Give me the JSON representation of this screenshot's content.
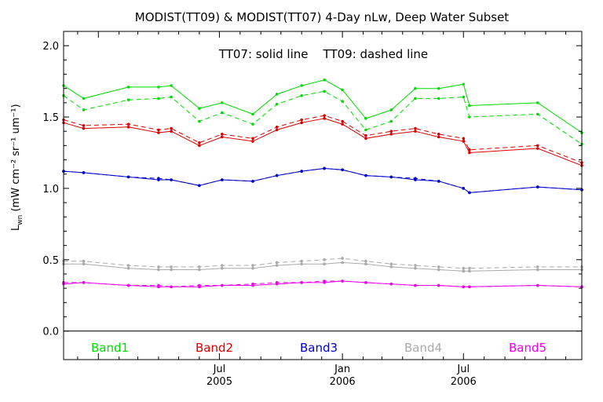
{
  "chart_data": {
    "type": "line",
    "title": "MODIST(TT09) & MODIST(TT07) 4-Day nLw, Deep Water Subset",
    "annotation": "TT07: solid line    TT09: dashed line",
    "ylabel_main": "L",
    "ylabel_sub": "wn",
    "ylabel_units": "(mW cm⁻² sr⁻¹ um⁻¹)",
    "ylim": [
      -0.2,
      2.1
    ],
    "yticks": [
      "0.0",
      "0.5",
      "1.0",
      "1.5",
      "2.0"
    ],
    "xlim": [
      "2004-11-10",
      "2006-12-25"
    ],
    "x_tick_labels": [
      {
        "date": "2005-07-01",
        "month": "Jul",
        "year": "2005"
      },
      {
        "date": "2006-01-01",
        "month": "Jan",
        "year": "2006"
      },
      {
        "date": "2006-07-01",
        "month": "Jul",
        "year": "2006"
      }
    ],
    "grid": false,
    "x": [
      "2004-11-10",
      "2004-12-10",
      "2005-02-15",
      "2005-04-01",
      "2005-04-20",
      "2005-06-01",
      "2005-07-05",
      "2005-08-20",
      "2005-09-25",
      "2005-11-01",
      "2005-12-05",
      "2006-01-01",
      "2006-02-05",
      "2006-03-15",
      "2006-04-20",
      "2006-05-25",
      "2006-07-01",
      "2006-07-10",
      "2006-10-20",
      "2006-12-25"
    ],
    "series": [
      {
        "name": "Band1",
        "color": "#00dd00",
        "solid": [
          1.72,
          1.63,
          1.71,
          1.71,
          1.72,
          1.56,
          1.6,
          1.52,
          1.66,
          1.72,
          1.76,
          1.69,
          1.49,
          1.55,
          1.7,
          1.7,
          1.73,
          1.58,
          1.6,
          1.39
        ],
        "dashed": [
          1.65,
          1.55,
          1.62,
          1.63,
          1.64,
          1.47,
          1.53,
          1.45,
          1.59,
          1.65,
          1.68,
          1.61,
          1.41,
          1.47,
          1.63,
          1.63,
          1.64,
          1.5,
          1.52,
          1.31
        ]
      },
      {
        "name": "Band2",
        "color": "#dd0000",
        "solid": [
          1.46,
          1.42,
          1.43,
          1.39,
          1.4,
          1.3,
          1.36,
          1.33,
          1.41,
          1.46,
          1.49,
          1.45,
          1.35,
          1.38,
          1.4,
          1.36,
          1.33,
          1.25,
          1.28,
          1.16
        ],
        "dashed": [
          1.48,
          1.44,
          1.45,
          1.41,
          1.42,
          1.32,
          1.38,
          1.35,
          1.43,
          1.48,
          1.51,
          1.47,
          1.37,
          1.4,
          1.42,
          1.38,
          1.35,
          1.27,
          1.3,
          1.18
        ]
      },
      {
        "name": "Band3",
        "color": "#0000cc",
        "solid": [
          1.12,
          1.11,
          1.08,
          1.06,
          1.06,
          1.02,
          1.06,
          1.05,
          1.09,
          1.12,
          1.14,
          1.13,
          1.09,
          1.08,
          1.06,
          1.05,
          1.0,
          0.97,
          1.01,
          0.99
        ],
        "dashed": [
          1.12,
          1.11,
          1.08,
          1.07,
          1.06,
          1.02,
          1.06,
          1.05,
          1.09,
          1.12,
          1.14,
          1.13,
          1.09,
          1.08,
          1.07,
          1.05,
          1.0,
          0.97,
          1.01,
          0.99
        ]
      },
      {
        "name": "Band4",
        "color": "#aaaaaa",
        "solid": [
          0.47,
          0.47,
          0.44,
          0.43,
          0.43,
          0.43,
          0.44,
          0.44,
          0.46,
          0.47,
          0.47,
          0.48,
          0.47,
          0.45,
          0.44,
          0.43,
          0.42,
          0.42,
          0.43,
          0.43
        ],
        "dashed": [
          0.49,
          0.49,
          0.46,
          0.45,
          0.45,
          0.45,
          0.46,
          0.46,
          0.48,
          0.49,
          0.5,
          0.51,
          0.49,
          0.47,
          0.46,
          0.45,
          0.44,
          0.44,
          0.45,
          0.45
        ]
      },
      {
        "name": "Band5",
        "color": "#ee00ee",
        "solid": [
          0.33,
          0.34,
          0.32,
          0.31,
          0.31,
          0.31,
          0.32,
          0.32,
          0.33,
          0.34,
          0.34,
          0.35,
          0.34,
          0.33,
          0.32,
          0.32,
          0.31,
          0.31,
          0.32,
          0.31
        ],
        "dashed": [
          0.34,
          0.34,
          0.32,
          0.32,
          0.31,
          0.32,
          0.32,
          0.33,
          0.34,
          0.34,
          0.35,
          0.35,
          0.34,
          0.33,
          0.32,
          0.32,
          0.31,
          0.31,
          0.32,
          0.31
        ]
      }
    ]
  }
}
